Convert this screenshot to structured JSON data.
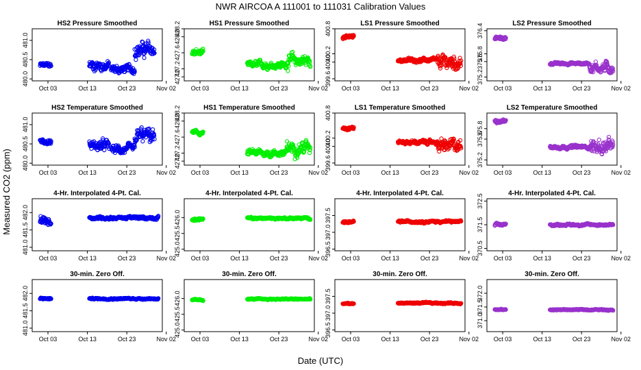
{
  "figure": {
    "title": "NWR   AIRCOA A   111001 to 111031   Calibration Values",
    "ylabel": "Measured CO2 (ppm)",
    "xlabel": "Date (UTC)"
  },
  "chart_data": {
    "type": "scatter",
    "x_ticks": [
      "Oct 03",
      "Oct 13",
      "Oct 23",
      "Nov 02"
    ],
    "x_tick_days": [
      3,
      13,
      23,
      33
    ],
    "xlim": [
      -1,
      32
    ],
    "colors": {
      "HS2": "#0000ee",
      "HS1": "#00ee00",
      "LS1": "#ee0000",
      "LS2": "#9932cc"
    },
    "panels": [
      {
        "id": "hs2-pressure",
        "title": "HS2 Pressure Smoothed",
        "color": "#0000ee",
        "ylim": [
          479.95,
          481.3
        ],
        "yticks": [
          "480.0",
          "480.5",
          "481.0"
        ],
        "ytick_values": [
          480.0,
          480.5,
          481.0
        ],
        "segments": [
          {
            "x": [
              1,
              3.8
            ],
            "level": 480.35,
            "spread": 0.12
          },
          {
            "x": [
              13.5,
              18.5
            ],
            "level": 480.35,
            "spread": 0.25
          },
          {
            "x": [
              19,
              25
            ],
            "level": 480.25,
            "spread": 0.2
          },
          {
            "x": [
              25,
              30
            ],
            "level": 480.75,
            "spread": 0.35
          }
        ]
      },
      {
        "id": "hs1-pressure",
        "title": "HS1 Pressure Smoothed",
        "color": "#00ee00",
        "ylim": [
          426.9,
          428.2
        ],
        "yticks": [
          "427.0",
          "427.2",
          "427.6",
          "428.0",
          "428.2"
        ],
        "ytick_values": [
          427.0,
          427.2,
          427.6,
          428.0,
          428.2
        ],
        "segments": [
          {
            "x": [
              1,
              3.8
            ],
            "level": 427.6,
            "spread": 0.15
          },
          {
            "x": [
              15,
              25
            ],
            "level": 427.3,
            "spread": 0.15
          },
          {
            "x": [
              25,
              31
            ],
            "level": 427.4,
            "spread": 0.3
          }
        ]
      },
      {
        "id": "ls1-pressure",
        "title": "LS1 Pressure Smoothed",
        "color": "#ee0000",
        "ylim": [
          399.55,
          400.8
        ],
        "yticks": [
          "399.6",
          "400.0",
          "400.2",
          "400.8"
        ],
        "ytick_values": [
          399.6,
          400.0,
          400.2,
          400.8
        ],
        "segments": [
          {
            "x": [
              1,
              3.8
            ],
            "level": 400.6,
            "spread": 0.08
          },
          {
            "x": [
              15,
              25
            ],
            "level": 400.05,
            "spread": 0.08
          },
          {
            "x": [
              25,
              31
            ],
            "level": 400.0,
            "spread": 0.3
          }
        ]
      },
      {
        "id": "ls2-pressure",
        "title": "LS2 Pressure Smoothed",
        "color": "#9932cc",
        "ylim": [
          375.1,
          376.45
        ],
        "yticks": [
          "375.2",
          "375.6",
          "375.8",
          "376.4"
        ],
        "ytick_values": [
          375.2,
          375.6,
          375.8,
          376.4
        ],
        "segments": [
          {
            "x": [
              1,
              3.8
            ],
            "level": 376.2,
            "spread": 0.08
          },
          {
            "x": [
              15,
              25
            ],
            "level": 375.55,
            "spread": 0.06
          },
          {
            "x": [
              25,
              31
            ],
            "level": 375.45,
            "spread": 0.25
          }
        ]
      },
      {
        "id": "hs2-temperature",
        "title": "HS2 Temperature Smoothed",
        "color": "#0000ee",
        "ylim": [
          479.95,
          481.3
        ],
        "yticks": [
          "480.0",
          "480.5",
          "481.0"
        ],
        "ytick_values": [
          480.0,
          480.5,
          481.0
        ],
        "segments": [
          {
            "x": [
              1,
              3.8
            ],
            "level": 480.55,
            "spread": 0.12
          },
          {
            "x": [
              13.5,
              18.5
            ],
            "level": 480.45,
            "spread": 0.25
          },
          {
            "x": [
              19,
              25
            ],
            "level": 480.35,
            "spread": 0.2
          },
          {
            "x": [
              25,
              30
            ],
            "level": 480.7,
            "spread": 0.35
          }
        ]
      },
      {
        "id": "hs1-temperature",
        "title": "HS1 Temperature Smoothed",
        "color": "#00ee00",
        "ylim": [
          426.9,
          428.2
        ],
        "yticks": [
          "427.0",
          "427.2",
          "427.6",
          "428.0",
          "428.2"
        ],
        "ytick_values": [
          427.0,
          427.2,
          427.6,
          428.0,
          428.2
        ],
        "segments": [
          {
            "x": [
              1,
              3.8
            ],
            "level": 427.7,
            "spread": 0.1
          },
          {
            "x": [
              15,
              25
            ],
            "level": 427.2,
            "spread": 0.15
          },
          {
            "x": [
              25,
              31
            ],
            "level": 427.35,
            "spread": 0.3
          }
        ]
      },
      {
        "id": "ls1-temperature",
        "title": "LS1 Temperature Smoothed",
        "color": "#ee0000",
        "ylim": [
          399.55,
          400.8
        ],
        "yticks": [
          "399.6",
          "400.0",
          "400.2",
          "400.8"
        ],
        "ytick_values": [
          399.6,
          400.0,
          400.2,
          400.8
        ],
        "segments": [
          {
            "x": [
              1,
              3.8
            ],
            "level": 400.45,
            "spread": 0.08
          },
          {
            "x": [
              15,
              25
            ],
            "level": 400.1,
            "spread": 0.08
          },
          {
            "x": [
              25,
              31
            ],
            "level": 400.0,
            "spread": 0.3
          }
        ]
      },
      {
        "id": "ls2-temperature",
        "title": "LS2 Temperature Smoothed",
        "color": "#9932cc",
        "ylim": [
          375.1,
          376.1
        ],
        "yticks": [
          "375.2",
          "375.6",
          "375.8"
        ],
        "ytick_values": [
          375.2,
          375.6,
          375.8
        ],
        "segments": [
          {
            "x": [
              1,
              3.8
            ],
            "level": 375.95,
            "spread": 0.06
          },
          {
            "x": [
              15,
              25
            ],
            "level": 375.45,
            "spread": 0.06
          },
          {
            "x": [
              25,
              31
            ],
            "level": 375.45,
            "spread": 0.25
          }
        ]
      },
      {
        "id": "hs2-interp",
        "title": "4-Hr. Interpolated 4-Pt. Cal.",
        "color": "#0000ee",
        "ylim": [
          480.9,
          482.4
        ],
        "yticks": [
          "481.0",
          "481.5",
          "482.0"
        ],
        "ytick_values": [
          481.0,
          481.5,
          482.0
        ],
        "segments": [
          {
            "x": [
              1,
              3.8
            ],
            "level": 481.75,
            "spread": 0.25
          },
          {
            "x": [
              13.5,
              31
            ],
            "level": 481.85,
            "spread": 0.08
          }
        ]
      },
      {
        "id": "hs1-interp",
        "title": "4-Hr. Interpolated 4-Pt. Cal.",
        "color": "#00ee00",
        "ylim": [
          424.95,
          426.6
        ],
        "yticks": [
          "425.0",
          "425.5",
          "426.0"
        ],
        "ytick_values": [
          425.0,
          425.5,
          426.0
        ],
        "segments": [
          {
            "x": [
              1,
              3.8
            ],
            "level": 425.95,
            "spread": 0.08
          },
          {
            "x": [
              15,
              31
            ],
            "level": 425.98,
            "spread": 0.06
          }
        ]
      },
      {
        "id": "ls1-interp",
        "title": "4-Hr. Interpolated 4-Pt. Cal.",
        "color": "#ee0000",
        "ylim": [
          396.45,
          398.0
        ],
        "yticks": [
          "396.5",
          "397.0",
          "397.5"
        ],
        "ytick_values": [
          396.5,
          397.0,
          397.5
        ],
        "segments": [
          {
            "x": [
              1,
              3.8
            ],
            "level": 397.3,
            "spread": 0.06
          },
          {
            "x": [
              15,
              31
            ],
            "level": 397.32,
            "spread": 0.06
          }
        ]
      },
      {
        "id": "ls2-interp",
        "title": "4-Hr. Interpolated 4-Pt. Cal.",
        "color": "#9932cc",
        "ylim": [
          370.4,
          372.6
        ],
        "yticks": [
          "370.5",
          "371.5",
          "372.5"
        ],
        "ytick_values": [
          370.5,
          371.5,
          372.5
        ],
        "segments": [
          {
            "x": [
              1,
              3.8
            ],
            "level": 371.5,
            "spread": 0.1
          },
          {
            "x": [
              15,
              31
            ],
            "level": 371.5,
            "spread": 0.08
          }
        ]
      },
      {
        "id": "hs2-zero",
        "title": "30-min. Zero Off.",
        "color": "#0000ee",
        "ylim": [
          480.9,
          482.4
        ],
        "yticks": [
          "481.0",
          "481.5",
          "482.0"
        ],
        "ytick_values": [
          481.0,
          481.5,
          482.0
        ],
        "segments": [
          {
            "x": [
              1,
              3.8
            ],
            "level": 481.85,
            "spread": 0.05
          },
          {
            "x": [
              13.5,
              31
            ],
            "level": 481.85,
            "spread": 0.04
          }
        ]
      },
      {
        "id": "hs1-zero",
        "title": "30-min. Zero Off.",
        "color": "#00ee00",
        "ylim": [
          424.95,
          426.6
        ],
        "yticks": [
          "425.0",
          "425.5",
          "426.0"
        ],
        "ytick_values": [
          425.0,
          425.5,
          426.0
        ],
        "segments": [
          {
            "x": [
              1,
              3.8
            ],
            "level": 425.95,
            "spread": 0.04
          },
          {
            "x": [
              15,
              31
            ],
            "level": 425.98,
            "spread": 0.04
          }
        ]
      },
      {
        "id": "ls1-zero",
        "title": "30-min. Zero Off.",
        "color": "#ee0000",
        "ylim": [
          396.45,
          398.0
        ],
        "yticks": [
          "396.5",
          "397.0",
          "397.5"
        ],
        "ytick_values": [
          396.5,
          397.0,
          397.5
        ],
        "segments": [
          {
            "x": [
              1,
              3.8
            ],
            "level": 397.28,
            "spread": 0.04
          },
          {
            "x": [
              15,
              31
            ],
            "level": 397.3,
            "spread": 0.04
          }
        ]
      },
      {
        "id": "ls2-zero",
        "title": "30-min. Zero Off.",
        "color": "#9932cc",
        "ylim": [
          370.6,
          372.5
        ],
        "yticks": [
          "371.0",
          "371.5",
          "372.0"
        ],
        "ytick_values": [
          371.0,
          371.5,
          372.0
        ],
        "segments": [
          {
            "x": [
              1,
              3.8
            ],
            "level": 371.4,
            "spread": 0.04
          },
          {
            "x": [
              15,
              31
            ],
            "level": 371.4,
            "spread": 0.04
          }
        ]
      }
    ]
  }
}
